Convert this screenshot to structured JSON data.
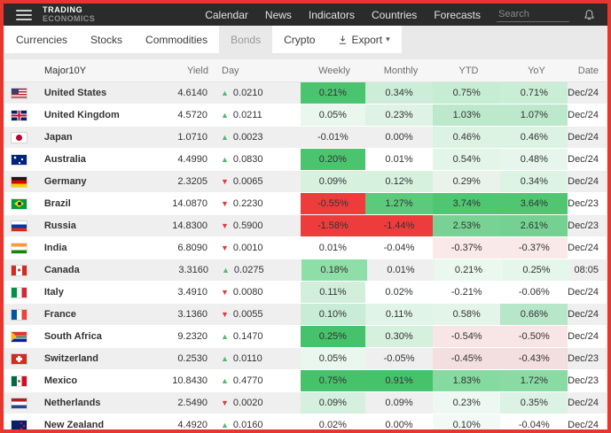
{
  "header": {
    "logo_line1": "TRADING",
    "logo_line2": "ECONOMICS",
    "nav": [
      "Calendar",
      "News",
      "Indicators",
      "Countries",
      "Forecasts"
    ],
    "search_placeholder": "Search"
  },
  "tabs": {
    "items": [
      "Currencies",
      "Stocks",
      "Commodities",
      "Bonds",
      "Crypto"
    ],
    "active": "Bonds",
    "export_label": "Export"
  },
  "glyphs": {
    "up": "▲",
    "down": "▼",
    "caret": "▾"
  },
  "colors": {
    "frame_border": "#e8362e",
    "topbar_bg": "#2b2b2b",
    "strong_green": "#4bc46f",
    "strong_red": "#ee3c3c",
    "up_arrow": "#4dbd6d",
    "down_arrow": "#e23c3c"
  },
  "table": {
    "columns": [
      "Major10Y",
      "Yield",
      "Day",
      "Weekly",
      "Monthly",
      "YTD",
      "YoY",
      "Date"
    ],
    "rows": [
      {
        "country": "United States",
        "cc": "us",
        "yield": "4.6140",
        "dir": "up",
        "day": "0.0210",
        "weekly": {
          "v": "0.21%",
          "c": "#4bc46f"
        },
        "monthly": {
          "v": "0.34%",
          "c": "#cceed8"
        },
        "ytd": {
          "v": "0.75%",
          "c": "#c6ecd3"
        },
        "yoy": {
          "v": "0.71%",
          "c": "#c9edd5"
        },
        "date": "Dec/24"
      },
      {
        "country": "United Kingdom",
        "cc": "gb",
        "yield": "4.5720",
        "dir": "up",
        "day": "0.0211",
        "weekly": {
          "v": "0.05%",
          "c": "#e9f7ee"
        },
        "monthly": {
          "v": "0.23%",
          "c": "#def3e5"
        },
        "ytd": {
          "v": "1.03%",
          "c": "#bce8cb"
        },
        "yoy": {
          "v": "1.07%",
          "c": "#bce8cb"
        },
        "date": "Dec/24"
      },
      {
        "country": "Japan",
        "cc": "jp",
        "yield": "1.0710",
        "dir": "up",
        "day": "0.0023",
        "weekly": {
          "v": "-0.01%",
          "c": null
        },
        "monthly": {
          "v": "0.00%",
          "c": null
        },
        "ytd": {
          "v": "0.46%",
          "c": "#dcf2e3"
        },
        "yoy": {
          "v": "0.46%",
          "c": "#dcf2e3"
        },
        "date": "Dec/24"
      },
      {
        "country": "Australia",
        "cc": "au",
        "yield": "4.4990",
        "dir": "up",
        "day": "0.0830",
        "weekly": {
          "v": "0.20%",
          "c": "#4bc46f"
        },
        "monthly": {
          "v": "0.01%",
          "c": null
        },
        "ytd": {
          "v": "0.54%",
          "c": "#e3f5e9"
        },
        "yoy": {
          "v": "0.48%",
          "c": "#e7f6ec"
        },
        "date": "Dec/24"
      },
      {
        "country": "Germany",
        "cc": "de",
        "yield": "2.3205",
        "dir": "down",
        "day": "0.0065",
        "weekly": {
          "v": "0.09%",
          "c": "#d7f1df"
        },
        "monthly": {
          "v": "0.12%",
          "c": "#d7f1df"
        },
        "ytd": {
          "v": "0.29%",
          "c": "#e9f3ec"
        },
        "yoy": {
          "v": "0.34%",
          "c": "#ddf3e4"
        },
        "date": "Dec/24"
      },
      {
        "country": "Brazil",
        "cc": "br",
        "yield": "14.0870",
        "dir": "down",
        "day": "0.2230",
        "weekly": {
          "v": "-0.55%",
          "c": "#ee3c3c"
        },
        "monthly": {
          "v": "1.27%",
          "c": "#5bca7c"
        },
        "ytd": {
          "v": "3.74%",
          "c": "#4ec672"
        },
        "yoy": {
          "v": "3.64%",
          "c": "#50c673"
        },
        "date": "Dec/23"
      },
      {
        "country": "Russia",
        "cc": "ru",
        "yield": "14.8300",
        "dir": "down",
        "day": "0.5900",
        "weekly": {
          "v": "-1.58%",
          "c": "#ee3c3c"
        },
        "monthly": {
          "v": "-1.44%",
          "c": "#ee3c3c"
        },
        "ytd": {
          "v": "2.53%",
          "c": "#77d294"
        },
        "yoy": {
          "v": "2.61%",
          "c": "#74d192"
        },
        "date": "Dec/23"
      },
      {
        "country": "India",
        "cc": "in",
        "yield": "6.8090",
        "dir": "down",
        "day": "0.0010",
        "weekly": {
          "v": "0.01%",
          "c": null
        },
        "monthly": {
          "v": "-0.04%",
          "c": null
        },
        "ytd": {
          "v": "-0.37%",
          "c": "#fae9e9"
        },
        "yoy": {
          "v": "-0.37%",
          "c": "#fae9e9"
        },
        "date": "Dec/24"
      },
      {
        "country": "Canada",
        "cc": "ca",
        "yield": "3.3160",
        "dir": "up",
        "day": "0.0275",
        "weekly": {
          "v": "0.18%",
          "c": "#8edea8"
        },
        "monthly": {
          "v": "0.01%",
          "c": null
        },
        "ytd": {
          "v": "0.21%",
          "c": "#ebf8f0"
        },
        "yoy": {
          "v": "0.25%",
          "c": "#e5f6eb"
        },
        "date": "08:05"
      },
      {
        "country": "Italy",
        "cc": "it",
        "yield": "3.4910",
        "dir": "down",
        "day": "0.0080",
        "weekly": {
          "v": "0.11%",
          "c": "#d2efdb"
        },
        "monthly": {
          "v": "0.02%",
          "c": null
        },
        "ytd": {
          "v": "-0.21%",
          "c": null
        },
        "yoy": {
          "v": "-0.06%",
          "c": null
        },
        "date": "Dec/24"
      },
      {
        "country": "France",
        "cc": "fr",
        "yield": "3.1360",
        "dir": "down",
        "day": "0.0055",
        "weekly": {
          "v": "0.10%",
          "c": "#c8ecd5"
        },
        "monthly": {
          "v": "0.11%",
          "c": "#e0f4e7"
        },
        "ytd": {
          "v": "0.58%",
          "c": "#e3f5e9"
        },
        "yoy": {
          "v": "0.66%",
          "c": "#b7e6c8"
        },
        "date": "Dec/24"
      },
      {
        "country": "South Africa",
        "cc": "za",
        "yield": "9.2320",
        "dir": "up",
        "day": "0.1470",
        "weekly": {
          "v": "0.25%",
          "c": "#45c26b"
        },
        "monthly": {
          "v": "0.30%",
          "c": "#d6f0de"
        },
        "ytd": {
          "v": "-0.54%",
          "c": "#f8e5e5"
        },
        "yoy": {
          "v": "-0.50%",
          "c": "#f8e5e5"
        },
        "date": "Dec/24"
      },
      {
        "country": "Switzerland",
        "cc": "ch",
        "yield": "0.2530",
        "dir": "up",
        "day": "0.0110",
        "weekly": {
          "v": "0.05%",
          "c": "#e9f7ee"
        },
        "monthly": {
          "v": "-0.05%",
          "c": null
        },
        "ytd": {
          "v": "-0.45%",
          "c": "#f3dfdf"
        },
        "yoy": {
          "v": "-0.43%",
          "c": "#f3dfdf"
        },
        "date": "Dec/23"
      },
      {
        "country": "Mexico",
        "cc": "mx",
        "yield": "10.8430",
        "dir": "up",
        "day": "0.4770",
        "weekly": {
          "v": "0.75%",
          "c": "#46c26b"
        },
        "monthly": {
          "v": "0.91%",
          "c": "#46c26b"
        },
        "ytd": {
          "v": "1.83%",
          "c": "#85da9f"
        },
        "yoy": {
          "v": "1.72%",
          "c": "#89dba3"
        },
        "date": "Dec/23"
      },
      {
        "country": "Netherlands",
        "cc": "nl",
        "yield": "2.5490",
        "dir": "down",
        "day": "0.0020",
        "weekly": {
          "v": "0.09%",
          "c": "#d5f0de"
        },
        "monthly": {
          "v": "0.09%",
          "c": null
        },
        "ytd": {
          "v": "0.23%",
          "c": "#ecf8f1"
        },
        "yoy": {
          "v": "0.35%",
          "c": "#dcf2e3"
        },
        "date": "Dec/24"
      },
      {
        "country": "New Zealand",
        "cc": "nz",
        "yield": "4.4920",
        "dir": "up",
        "day": "0.0160",
        "weekly": {
          "v": "0.02%",
          "c": null
        },
        "monthly": {
          "v": "0.00%",
          "c": null
        },
        "ytd": {
          "v": "0.10%",
          "c": "#f1faf5"
        },
        "yoy": {
          "v": "-0.04%",
          "c": null
        },
        "date": "Dec/24"
      }
    ]
  }
}
